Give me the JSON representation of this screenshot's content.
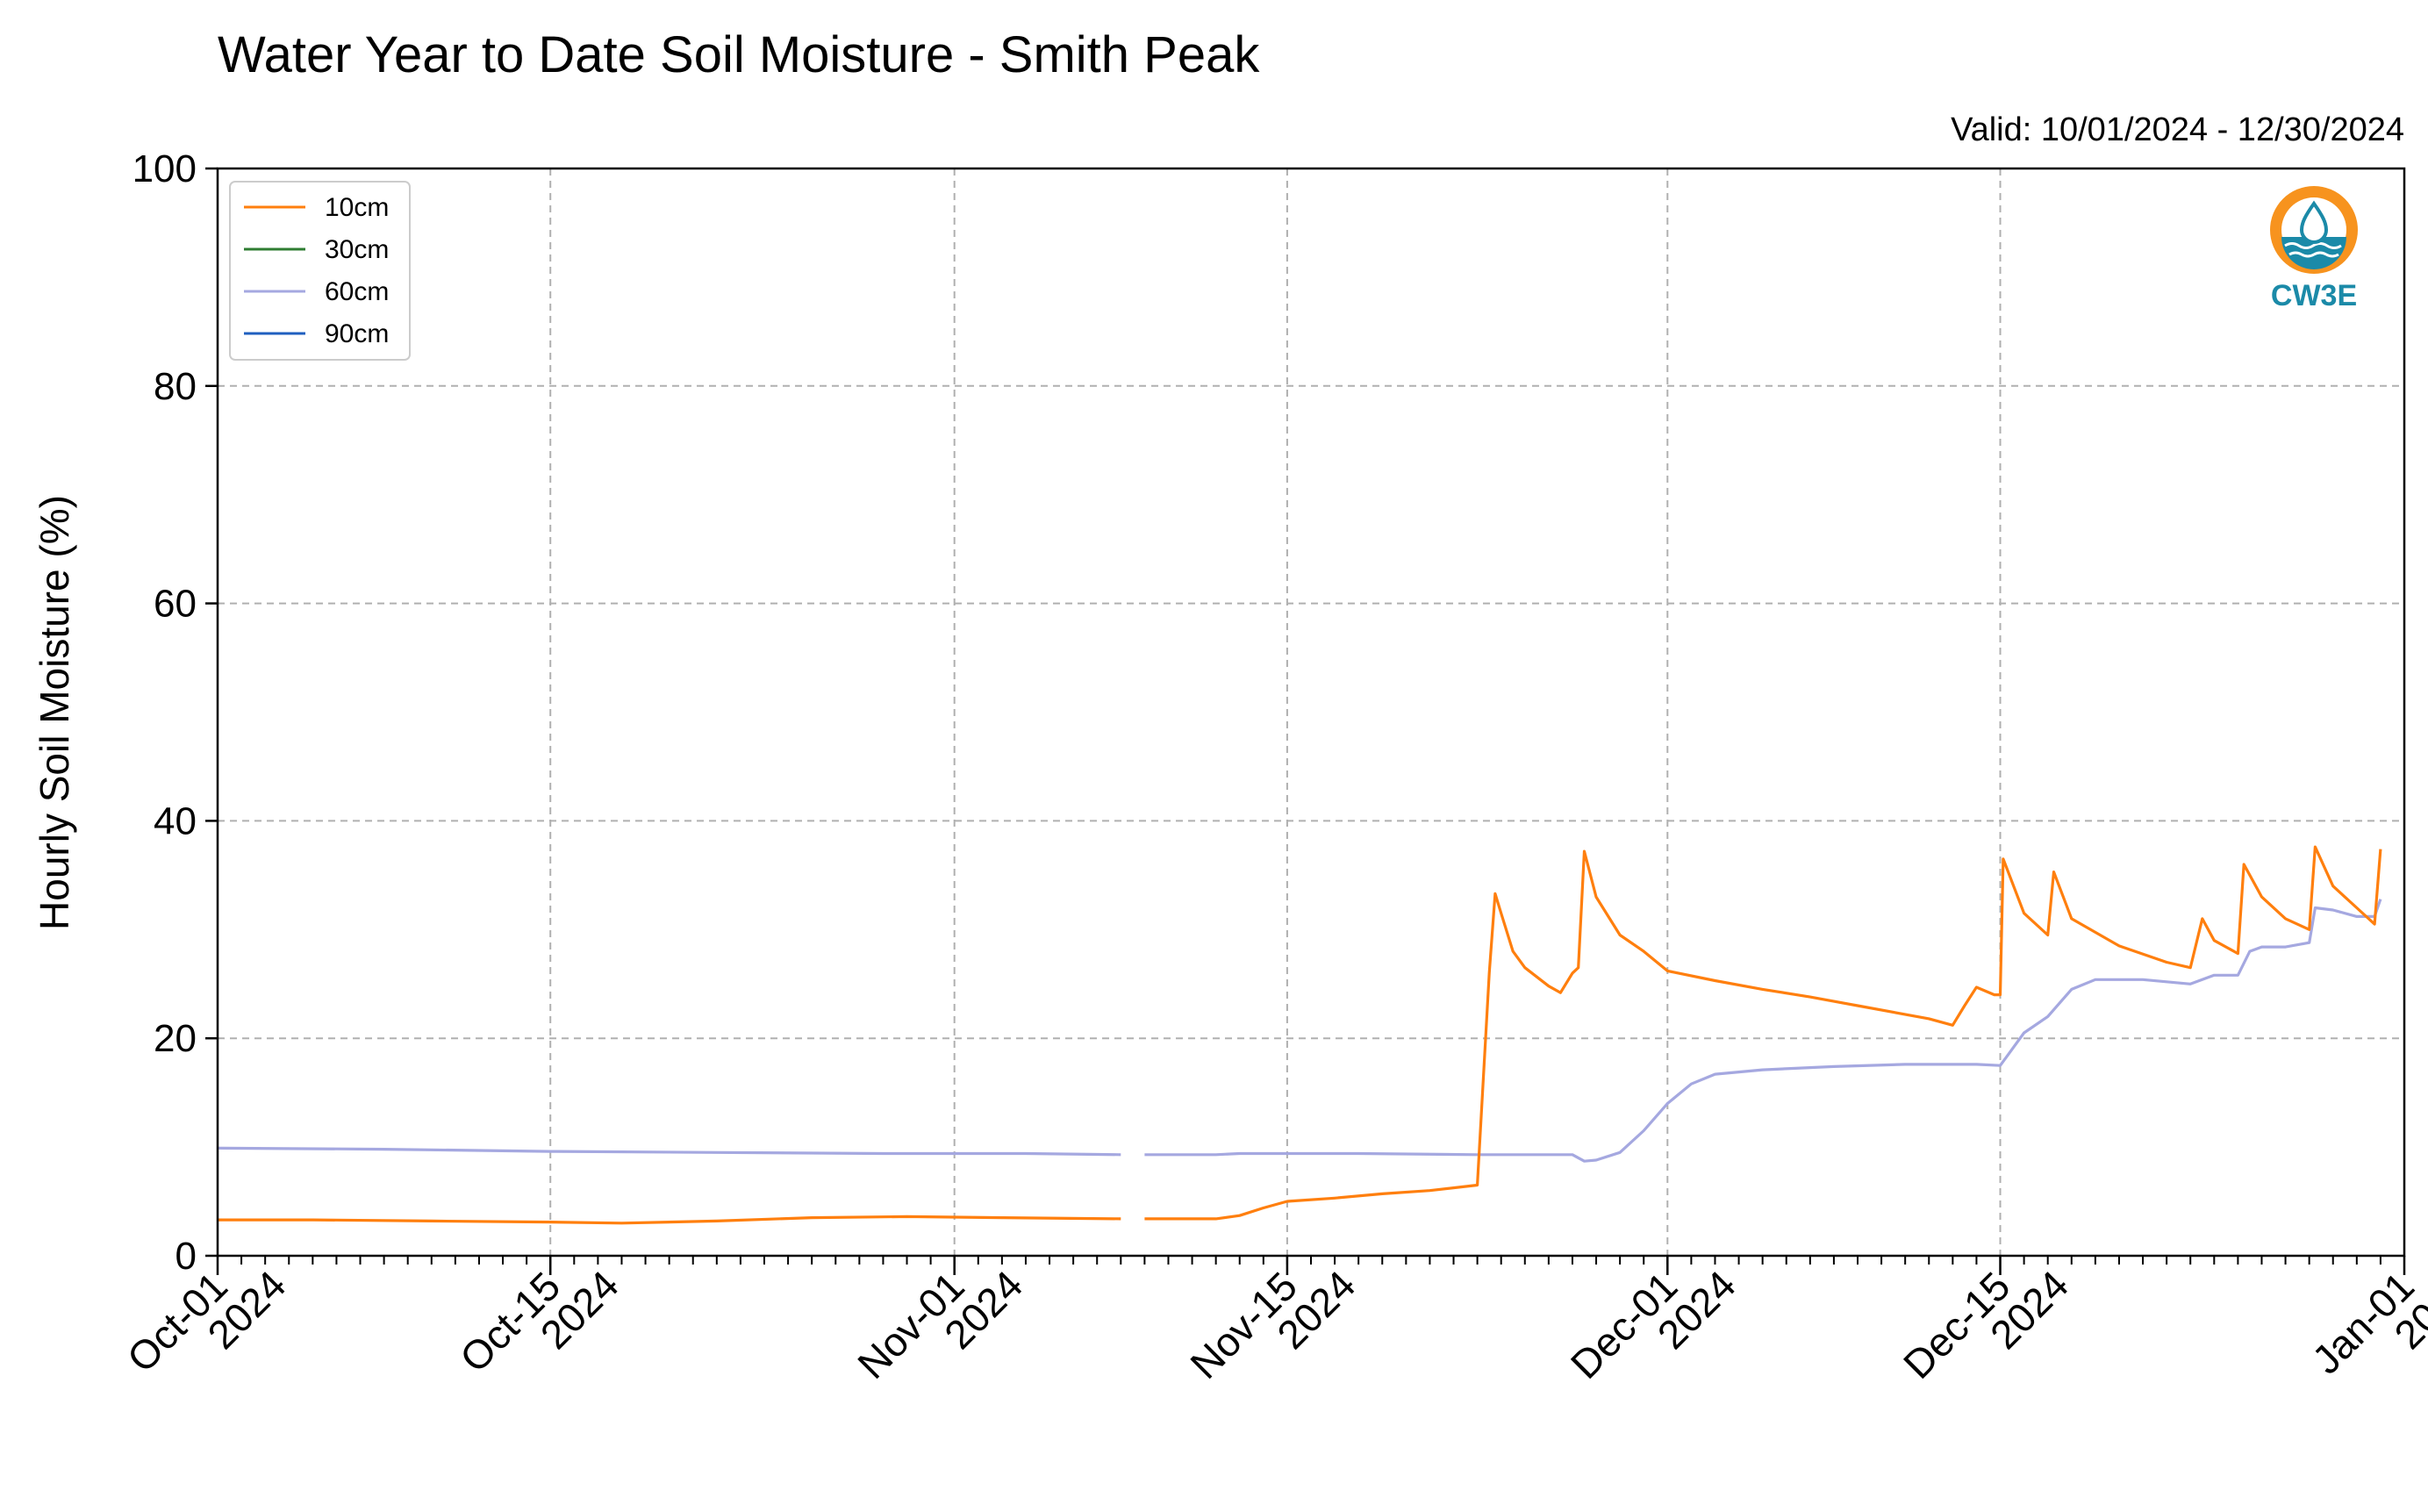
{
  "chart_data": {
    "type": "line",
    "title": "Water Year to Date Soil Moisture - Smith Peak",
    "subtitle": "Valid: 10/01/2024 - 12/30/2024",
    "xlabel": "",
    "ylabel": "Hourly Soil Moisture (%)",
    "ylim": [
      0,
      100
    ],
    "xlim": [
      "2024-10-01",
      "2025-01-01"
    ],
    "grid": true,
    "legend_position": "top-left",
    "y_ticks": [
      0,
      20,
      40,
      60,
      80,
      100
    ],
    "x_ticks": [
      {
        "date": "2024-10-01",
        "line1": "Oct-01",
        "line2": "2024"
      },
      {
        "date": "2024-10-15",
        "line1": "Oct-15",
        "line2": "2024"
      },
      {
        "date": "2024-11-01",
        "line1": "Nov-01",
        "line2": "2024"
      },
      {
        "date": "2024-11-15",
        "line1": "Nov-15",
        "line2": "2024"
      },
      {
        "date": "2024-12-01",
        "line1": "Dec-01",
        "line2": "2024"
      },
      {
        "date": "2024-12-15",
        "line1": "Dec-15",
        "line2": "2024"
      },
      {
        "date": "2025-01-01",
        "line1": "Jan-01",
        "line2": "2025"
      }
    ],
    "series": [
      {
        "name": "10cm",
        "color": "#ff7f0e",
        "segments": [
          [
            [
              "2024-10-01",
              3.3
            ],
            [
              "2024-10-05",
              3.3
            ],
            [
              "2024-10-10",
              3.2
            ],
            [
              "2024-10-15",
              3.1
            ],
            [
              "2024-10-18",
              3.0
            ],
            [
              "2024-10-22",
              3.2
            ],
            [
              "2024-10-26",
              3.5
            ],
            [
              "2024-10-30",
              3.6
            ],
            [
              "2024-11-03",
              3.5
            ],
            [
              "2024-11-08",
              3.4
            ]
          ],
          [
            [
              "2024-11-09",
              3.4
            ],
            [
              "2024-11-12",
              3.4
            ],
            [
              "2024-11-13",
              3.7
            ],
            [
              "2024-11-14",
              4.4
            ],
            [
              "2024-11-15",
              5.0
            ],
            [
              "2024-11-17",
              5.3
            ],
            [
              "2024-11-19",
              5.7
            ],
            [
              "2024-11-21",
              6.0
            ],
            [
              "2024-11-23",
              6.5
            ],
            [
              "2024-11-23 12:00",
              26.0
            ],
            [
              "2024-11-23 18:00",
              33.3
            ],
            [
              "2024-11-24",
              31.5
            ],
            [
              "2024-11-24 12:00",
              28.0
            ],
            [
              "2024-11-25",
              26.5
            ],
            [
              "2024-11-26",
              24.8
            ],
            [
              "2024-11-26 12:00",
              24.2
            ],
            [
              "2024-11-27",
              26.0
            ],
            [
              "2024-11-27 06:00",
              26.5
            ],
            [
              "2024-11-27 12:00",
              37.2
            ],
            [
              "2024-11-28",
              33.0
            ],
            [
              "2024-11-29",
              29.5
            ],
            [
              "2024-11-30",
              28.0
            ],
            [
              "2024-12-01",
              26.2
            ],
            [
              "2024-12-03",
              25.3
            ],
            [
              "2024-12-05",
              24.5
            ],
            [
              "2024-12-07",
              23.8
            ],
            [
              "2024-12-09",
              23.0
            ],
            [
              "2024-12-12",
              21.8
            ],
            [
              "2024-12-13",
              21.2
            ],
            [
              "2024-12-13 12:00",
              23.0
            ],
            [
              "2024-12-14",
              24.7
            ],
            [
              "2024-12-14 18:00",
              24.0
            ],
            [
              "2024-12-15",
              24.0
            ],
            [
              "2024-12-15 03:00",
              36.5
            ],
            [
              "2024-12-16",
              31.5
            ],
            [
              "2024-12-17",
              29.5
            ],
            [
              "2024-12-17 06:00",
              35.3
            ],
            [
              "2024-12-18",
              31.0
            ],
            [
              "2024-12-20",
              28.5
            ],
            [
              "2024-12-22",
              27.0
            ],
            [
              "2024-12-23",
              26.5
            ],
            [
              "2024-12-23 12:00",
              31.0
            ],
            [
              "2024-12-24",
              29.0
            ],
            [
              "2024-12-25",
              27.8
            ],
            [
              "2024-12-25 06:00",
              36.0
            ],
            [
              "2024-12-26",
              33.0
            ],
            [
              "2024-12-27",
              31.0
            ],
            [
              "2024-12-28",
              30.0
            ],
            [
              "2024-12-28 06:00",
              37.6
            ],
            [
              "2024-12-29",
              34.0
            ],
            [
              "2024-12-30",
              32.0
            ],
            [
              "2024-12-30 18:00",
              30.5
            ],
            [
              "2024-12-31",
              37.4
            ]
          ]
        ]
      },
      {
        "name": "30cm",
        "color": "#2e7d32",
        "segments": []
      },
      {
        "name": "60cm",
        "color": "#a5a8e0",
        "segments": [
          [
            [
              "2024-10-01",
              9.9
            ],
            [
              "2024-10-08",
              9.8
            ],
            [
              "2024-10-15",
              9.6
            ],
            [
              "2024-10-22",
              9.5
            ],
            [
              "2024-10-29",
              9.4
            ],
            [
              "2024-11-04",
              9.4
            ],
            [
              "2024-11-08",
              9.3
            ]
          ],
          [
            [
              "2024-11-09",
              9.3
            ],
            [
              "2024-11-12",
              9.3
            ],
            [
              "2024-11-13",
              9.4
            ],
            [
              "2024-11-18",
              9.4
            ],
            [
              "2024-11-23",
              9.3
            ],
            [
              "2024-11-27",
              9.3
            ],
            [
              "2024-11-27 12:00",
              8.7
            ],
            [
              "2024-11-28",
              8.8
            ],
            [
              "2024-11-29",
              9.5
            ],
            [
              "2024-11-30",
              11.5
            ],
            [
              "2024-12-01",
              14.0
            ],
            [
              "2024-12-02",
              15.8
            ],
            [
              "2024-12-03",
              16.7
            ],
            [
              "2024-12-05",
              17.1
            ],
            [
              "2024-12-08",
              17.4
            ],
            [
              "2024-12-11",
              17.6
            ],
            [
              "2024-12-14",
              17.6
            ],
            [
              "2024-12-15",
              17.5
            ],
            [
              "2024-12-15 12:00",
              19.0
            ],
            [
              "2024-12-16",
              20.5
            ],
            [
              "2024-12-17",
              22.0
            ],
            [
              "2024-12-18",
              24.5
            ],
            [
              "2024-12-19",
              25.4
            ],
            [
              "2024-12-21",
              25.4
            ],
            [
              "2024-12-23",
              25.0
            ],
            [
              "2024-12-24",
              25.8
            ],
            [
              "2024-12-25",
              25.8
            ],
            [
              "2024-12-25 12:00",
              28.0
            ],
            [
              "2024-12-26",
              28.4
            ],
            [
              "2024-12-27",
              28.4
            ],
            [
              "2024-12-28",
              28.8
            ],
            [
              "2024-12-28 06:00",
              32.0
            ],
            [
              "2024-12-29",
              31.8
            ],
            [
              "2024-12-30",
              31.2
            ],
            [
              "2024-12-30 18:00",
              31.2
            ],
            [
              "2024-12-31",
              32.8
            ]
          ]
        ]
      },
      {
        "name": "90cm",
        "color": "#1f5fbf",
        "segments": []
      }
    ]
  },
  "logo": {
    "text": "CW3E",
    "colors": {
      "orange": "#f7931e",
      "teal": "#1b8aa8"
    }
  }
}
